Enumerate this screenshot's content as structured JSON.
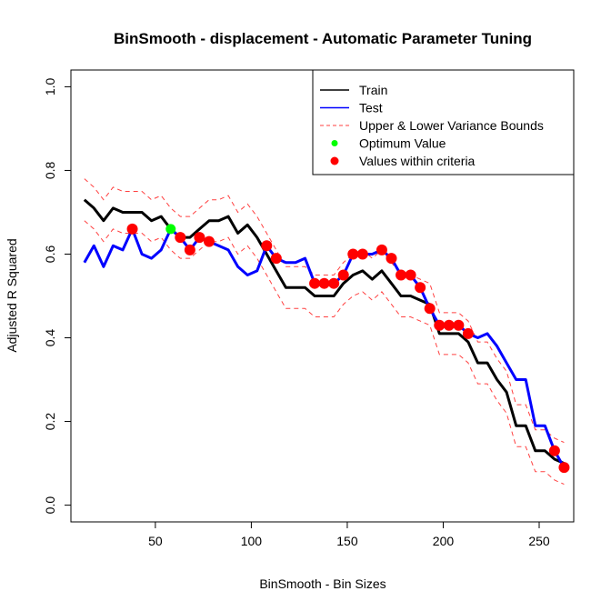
{
  "chart_data": {
    "type": "line",
    "title": "BinSmooth - displacement - Automatic Parameter Tuning",
    "xlabel": "BinSmooth - Bin Sizes",
    "ylabel": "Adjusted R Squared",
    "xlim": [
      6,
      268
    ],
    "ylim": [
      -0.04,
      1.04
    ],
    "xticks": [
      50,
      100,
      150,
      200,
      250
    ],
    "yticks": [
      0.0,
      0.2,
      0.4,
      0.6,
      0.8,
      1.0
    ],
    "ytick_labels": [
      "0.0",
      "0.2",
      "0.4",
      "0.6",
      "0.8",
      "1.0"
    ],
    "legend_position": "top-right",
    "legend": [
      {
        "label": "Train",
        "type": "line",
        "color": "#000000"
      },
      {
        "label": "Test",
        "type": "line",
        "color": "#0000ff"
      },
      {
        "label": "Upper & Lower Variance Bounds",
        "type": "dashed",
        "color": "#ff0000"
      },
      {
        "label": "Optimum Value",
        "type": "point",
        "color": "#00ff00"
      },
      {
        "label": "Values within criteria",
        "type": "point",
        "color": "#ff0000"
      }
    ],
    "x": [
      13,
      18,
      23,
      28,
      33,
      38,
      43,
      48,
      53,
      58,
      63,
      68,
      73,
      78,
      83,
      88,
      93,
      98,
      103,
      108,
      113,
      118,
      123,
      128,
      133,
      138,
      143,
      148,
      153,
      158,
      163,
      168,
      173,
      178,
      183,
      188,
      193,
      198,
      203,
      208,
      213,
      218,
      223,
      228,
      233,
      238,
      243,
      248,
      253,
      258,
      263
    ],
    "series": [
      {
        "name": "Train",
        "color": "#000000",
        "values": [
          0.73,
          0.71,
          0.68,
          0.71,
          0.7,
          0.7,
          0.7,
          0.68,
          0.69,
          0.66,
          0.64,
          0.64,
          0.66,
          0.68,
          0.68,
          0.69,
          0.65,
          0.67,
          0.64,
          0.6,
          0.56,
          0.52,
          0.52,
          0.52,
          0.5,
          0.5,
          0.5,
          0.53,
          0.55,
          0.56,
          0.54,
          0.56,
          0.53,
          0.5,
          0.5,
          0.49,
          0.48,
          0.41,
          0.41,
          0.41,
          0.39,
          0.34,
          0.34,
          0.3,
          0.27,
          0.19,
          0.19,
          0.13,
          0.13,
          0.11,
          0.1
        ]
      },
      {
        "name": "Test",
        "color": "#0000ff",
        "values": [
          0.58,
          0.62,
          0.57,
          0.62,
          0.61,
          0.66,
          0.6,
          0.59,
          0.61,
          0.66,
          0.64,
          0.61,
          0.64,
          0.63,
          0.62,
          0.61,
          0.57,
          0.55,
          0.56,
          0.62,
          0.59,
          0.58,
          0.58,
          0.59,
          0.53,
          0.53,
          0.53,
          0.55,
          0.6,
          0.6,
          0.6,
          0.61,
          0.59,
          0.55,
          0.55,
          0.52,
          0.47,
          0.43,
          0.43,
          0.43,
          0.41,
          0.4,
          0.41,
          0.38,
          0.34,
          0.3,
          0.3,
          0.19,
          0.19,
          0.13,
          0.09
        ]
      },
      {
        "name": "Upper & Lower Variance Bounds",
        "color": "#ff0000",
        "dashed": true,
        "upper": [
          0.78,
          0.76,
          0.73,
          0.76,
          0.75,
          0.75,
          0.75,
          0.73,
          0.74,
          0.71,
          0.69,
          0.69,
          0.71,
          0.73,
          0.73,
          0.74,
          0.7,
          0.72,
          0.69,
          0.65,
          0.61,
          0.57,
          0.57,
          0.57,
          0.55,
          0.55,
          0.55,
          0.58,
          0.6,
          0.61,
          0.59,
          0.61,
          0.58,
          0.55,
          0.55,
          0.54,
          0.53,
          0.46,
          0.46,
          0.46,
          0.44,
          0.39,
          0.39,
          0.35,
          0.32,
          0.24,
          0.24,
          0.18,
          0.18,
          0.16,
          0.15
        ],
        "lower": [
          0.68,
          0.66,
          0.63,
          0.66,
          0.65,
          0.65,
          0.65,
          0.63,
          0.64,
          0.61,
          0.59,
          0.59,
          0.61,
          0.63,
          0.63,
          0.64,
          0.6,
          0.62,
          0.59,
          0.55,
          0.51,
          0.47,
          0.47,
          0.47,
          0.45,
          0.45,
          0.45,
          0.48,
          0.5,
          0.51,
          0.49,
          0.51,
          0.48,
          0.45,
          0.45,
          0.44,
          0.43,
          0.36,
          0.36,
          0.36,
          0.34,
          0.29,
          0.29,
          0.25,
          0.22,
          0.14,
          0.14,
          0.08,
          0.08,
          0.06,
          0.05
        ]
      }
    ],
    "optimum": {
      "x": 58,
      "y": 0.66
    },
    "criteria_points": [
      {
        "x": 38,
        "y": 0.66
      },
      {
        "x": 63,
        "y": 0.64
      },
      {
        "x": 68,
        "y": 0.61
      },
      {
        "x": 73,
        "y": 0.64
      },
      {
        "x": 78,
        "y": 0.63
      },
      {
        "x": 108,
        "y": 0.62
      },
      {
        "x": 113,
        "y": 0.59
      },
      {
        "x": 133,
        "y": 0.53
      },
      {
        "x": 138,
        "y": 0.53
      },
      {
        "x": 143,
        "y": 0.53
      },
      {
        "x": 148,
        "y": 0.55
      },
      {
        "x": 153,
        "y": 0.6
      },
      {
        "x": 158,
        "y": 0.6
      },
      {
        "x": 168,
        "y": 0.61
      },
      {
        "x": 173,
        "y": 0.59
      },
      {
        "x": 178,
        "y": 0.55
      },
      {
        "x": 183,
        "y": 0.55
      },
      {
        "x": 188,
        "y": 0.52
      },
      {
        "x": 193,
        "y": 0.47
      },
      {
        "x": 198,
        "y": 0.43
      },
      {
        "x": 203,
        "y": 0.43
      },
      {
        "x": 208,
        "y": 0.43
      },
      {
        "x": 213,
        "y": 0.41
      },
      {
        "x": 258,
        "y": 0.13
      },
      {
        "x": 263,
        "y": 0.09
      }
    ]
  }
}
